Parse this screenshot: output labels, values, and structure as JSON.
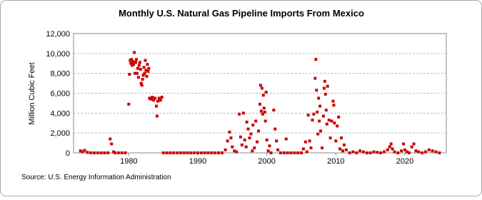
{
  "chart_data": {
    "type": "scatter",
    "title": "Monthly U.S. Natural Gas Pipeline Imports From Mexico",
    "y_label": "Million Cubic Feet",
    "source": "Source: U.S. Energy Information Administration",
    "xlim": [
      1972,
      2026
    ],
    "xticks": [
      1980,
      1990,
      2000,
      2010,
      2020
    ],
    "ylim": [
      0,
      12000
    ],
    "yticks": [
      0,
      {
        "value": 2000,
        "label": "2,000"
      },
      {
        "value": 4000,
        "label": "4,000"
      },
      {
        "value": 6000,
        "label": "6,000"
      },
      {
        "value": 8000,
        "label": "8,000"
      },
      {
        "value": 10000,
        "label": "10,000"
      },
      {
        "value": 12000,
        "label": "12,000"
      }
    ],
    "grid": true,
    "color": "#cc0000",
    "x": [
      1973.0,
      1973.3,
      1973.6,
      1974.0,
      1974.5,
      1975.0,
      1975.5,
      1976.0,
      1976.5,
      1977.0,
      1977.3,
      1977.5,
      1977.8,
      1978.0,
      1978.5,
      1979.0,
      1979.5,
      1980.0,
      1980.1,
      1980.2,
      1980.3,
      1980.4,
      1980.5,
      1980.6,
      1980.7,
      1980.8,
      1980.9,
      1981.0,
      1981.1,
      1981.2,
      1981.3,
      1981.4,
      1981.5,
      1981.6,
      1981.7,
      1981.8,
      1981.9,
      1982.0,
      1982.1,
      1982.2,
      1982.3,
      1982.4,
      1982.5,
      1982.6,
      1982.7,
      1982.8,
      1982.9,
      1983.0,
      1983.2,
      1983.4,
      1983.6,
      1983.8,
      1984.0,
      1984.1,
      1984.2,
      1984.4,
      1984.6,
      1984.8,
      1985.0,
      1985.5,
      1986.0,
      1986.5,
      1987.0,
      1987.5,
      1988.0,
      1988.5,
      1989.0,
      1989.5,
      1990.0,
      1990.5,
      1991.0,
      1991.5,
      1992.0,
      1992.5,
      1993.0,
      1993.5,
      1994.0,
      1994.3,
      1994.6,
      1994.8,
      1995.0,
      1995.3,
      1995.6,
      1996.0,
      1996.2,
      1996.4,
      1996.6,
      1996.8,
      1997.0,
      1997.1,
      1997.3,
      1997.5,
      1997.7,
      1997.9,
      1998.0,
      1998.2,
      1998.4,
      1998.6,
      1998.8,
      1999.0,
      1999.1,
      1999.2,
      1999.3,
      1999.4,
      1999.5,
      1999.6,
      1999.7,
      1999.8,
      1999.9,
      2000.0,
      2000.2,
      2000.4,
      2000.6,
      2001.0,
      2001.2,
      2001.4,
      2001.6,
      2002.0,
      2002.5,
      2002.8,
      2003.0,
      2003.5,
      2004.0,
      2004.5,
      2005.0,
      2005.3,
      2005.6,
      2005.8,
      2006.0,
      2006.2,
      2006.4,
      2006.6,
      2006.8,
      2007.0,
      2007.1,
      2007.2,
      2007.3,
      2007.4,
      2007.5,
      2007.6,
      2007.7,
      2007.8,
      2008.0,
      2008.2,
      2008.3,
      2008.4,
      2008.5,
      2008.6,
      2008.7,
      2008.8,
      2009.0,
      2009.2,
      2009.4,
      2009.6,
      2009.7,
      2009.8,
      2010.0,
      2010.2,
      2010.4,
      2010.6,
      2010.8,
      2011.0,
      2011.2,
      2011.5,
      2012.0,
      2012.5,
      2013.0,
      2013.5,
      2014.0,
      2014.5,
      2015.0,
      2015.5,
      2016.0,
      2016.5,
      2017.0,
      2017.5,
      2017.8,
      2018.0,
      2018.2,
      2018.5,
      2019.0,
      2019.5,
      2019.8,
      2020.0,
      2020.3,
      2020.6,
      2021.0,
      2021.3,
      2021.6,
      2022.0,
      2022.5,
      2023.0,
      2023.5,
      2024.0,
      2024.5,
      2025.0
    ],
    "values": [
      200,
      100,
      250,
      50,
      0,
      0,
      0,
      0,
      0,
      0,
      1400,
      900,
      100,
      0,
      0,
      0,
      0,
      4900,
      7900,
      9300,
      9000,
      9400,
      8800,
      9200,
      8900,
      10100,
      8000,
      9100,
      9400,
      8000,
      8500,
      7600,
      8800,
      9100,
      8400,
      7000,
      6800,
      7400,
      7800,
      8600,
      8000,
      9300,
      8300,
      7700,
      8900,
      8200,
      8500,
      5500,
      5400,
      5600,
      5300,
      5500,
      4700,
      3700,
      5200,
      5500,
      5300,
      5600,
      0,
      0,
      0,
      0,
      0,
      0,
      0,
      0,
      0,
      0,
      0,
      0,
      0,
      0,
      0,
      0,
      0,
      0,
      300,
      1200,
      2100,
      1500,
      600,
      200,
      100,
      3900,
      1600,
      800,
      4000,
      1300,
      600,
      3100,
      2400,
      1500,
      1900,
      200,
      2800,
      500,
      3200,
      1100,
      2200,
      4900,
      6800,
      4200,
      6500,
      3900,
      5800,
      4500,
      4100,
      3200,
      6100,
      1300,
      200,
      700,
      0,
      4300,
      2400,
      1200,
      300,
      0,
      0,
      1400,
      0,
      0,
      0,
      0,
      0,
      400,
      1100,
      100,
      3800,
      1200,
      500,
      3300,
      3900,
      7500,
      9400,
      6300,
      4100,
      1900,
      5500,
      3200,
      4700,
      2200,
      500,
      3700,
      6500,
      7200,
      5900,
      4300,
      2900,
      6700,
      3300,
      1500,
      3200,
      5200,
      4800,
      3000,
      1200,
      2700,
      3600,
      400,
      1500,
      200,
      800,
      300,
      0,
      100,
      0,
      200,
      100,
      0,
      0,
      100,
      50,
      0,
      100,
      300,
      600,
      900,
      400,
      100,
      0,
      200,
      900,
      300,
      100,
      0,
      600,
      900,
      200,
      100,
      0,
      100,
      300,
      200,
      100,
      0
    ]
  }
}
